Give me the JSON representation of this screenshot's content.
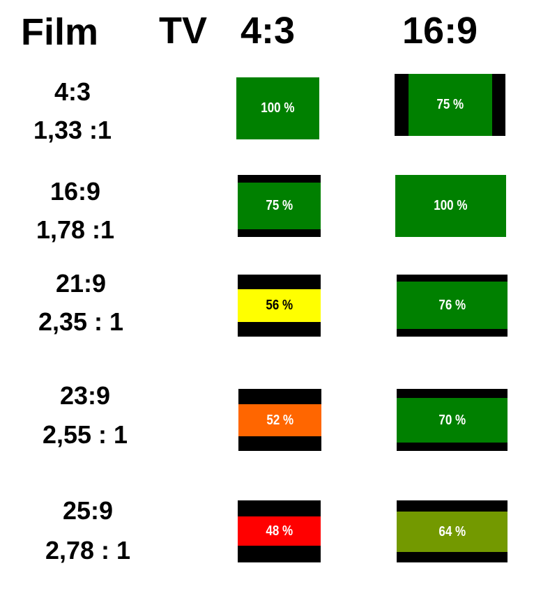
{
  "header": {
    "film": "Film",
    "tv": "TV",
    "col1": "4:3",
    "col2": "16:9"
  },
  "rows": [
    {
      "ratio": "4:3",
      "decimal": "1,33 :1",
      "tv43": "100 %",
      "tv169": "75 %"
    },
    {
      "ratio": "16:9",
      "decimal": "1,78 :1",
      "tv43": "75 %",
      "tv169": "100 %"
    },
    {
      "ratio": "21:9",
      "decimal": "2,35 : 1",
      "tv43": "56 %",
      "tv169": "76 %"
    },
    {
      "ratio": "23:9",
      "decimal": "2,55 : 1",
      "tv43": "52 %",
      "tv169": "70 %"
    },
    {
      "ratio": "25:9",
      "decimal": "2,78 : 1",
      "tv43": "48 %",
      "tv169": "64 %"
    }
  ]
}
